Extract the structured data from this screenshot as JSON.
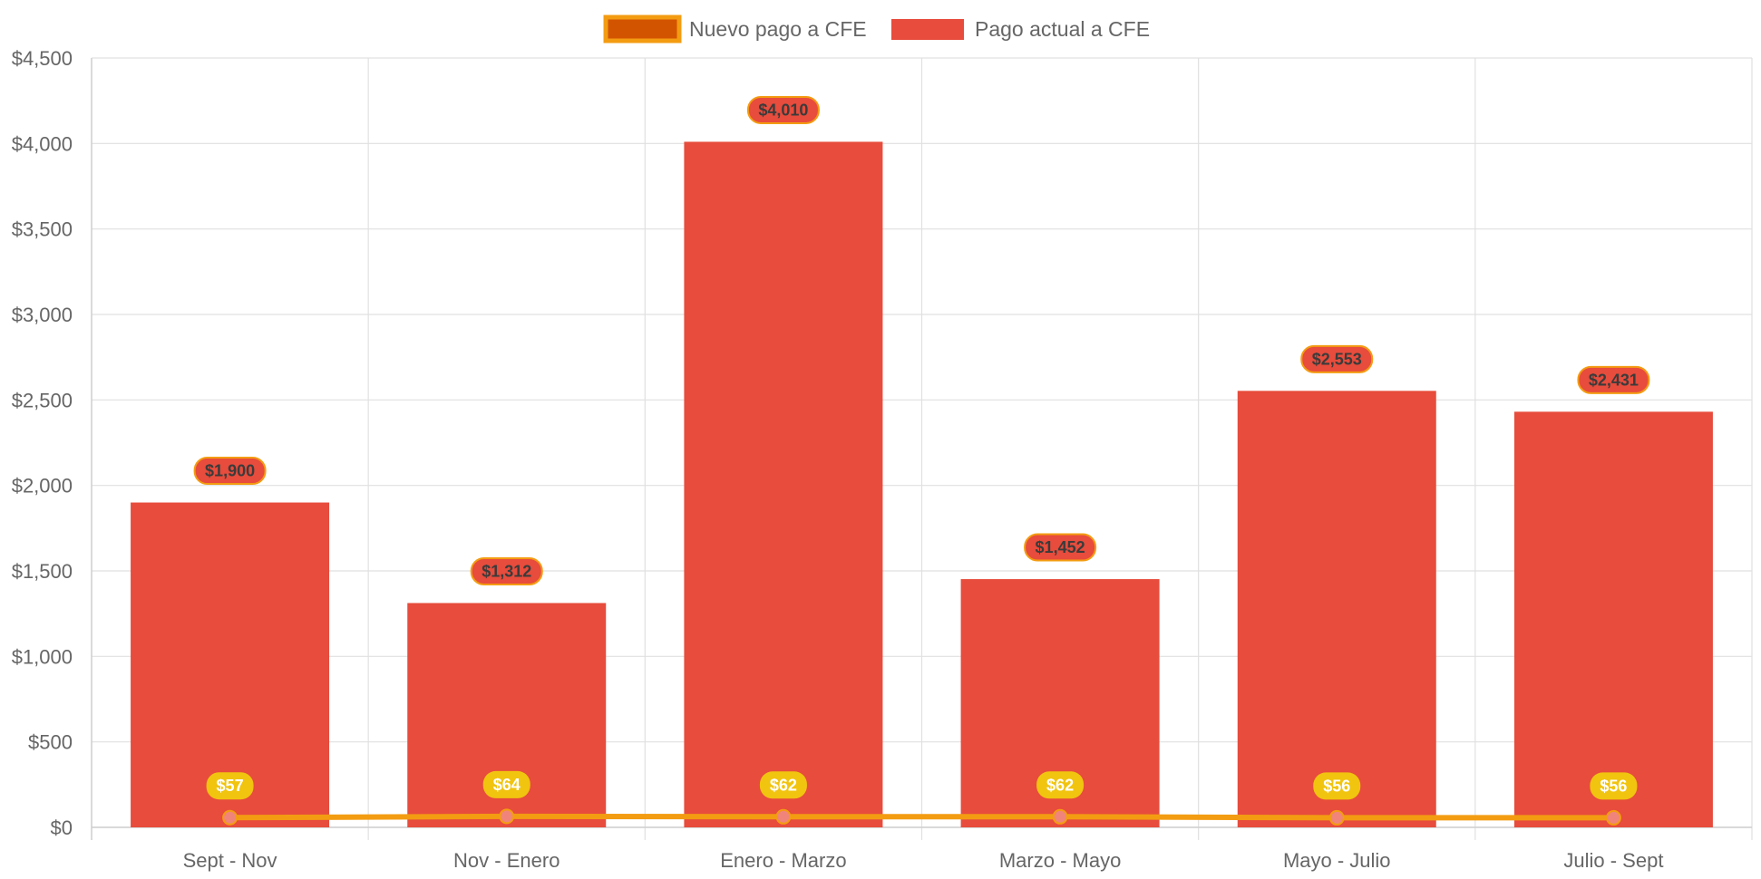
{
  "chart_data": {
    "type": "bar",
    "categories": [
      "Sept - Nov",
      "Nov - Enero",
      "Enero - Marzo",
      "Marzo - Mayo",
      "Mayo - Julio",
      "Julio - Sept"
    ],
    "series": [
      {
        "name": "Nuevo pago a CFE",
        "render": "line",
        "values": [
          57,
          64,
          62,
          62,
          56,
          56
        ],
        "labels": [
          "$57",
          "$64",
          "$62",
          "$62",
          "$56",
          "$56"
        ],
        "color": "#f39c12",
        "swatch_fill": "#d35400"
      },
      {
        "name": "Pago actual a CFE",
        "render": "bar",
        "values": [
          1900,
          1312,
          4010,
          1452,
          2553,
          2431
        ],
        "labels": [
          "$1,900",
          "$1,312",
          "$4,010",
          "$1,452",
          "$2,553",
          "$2,431"
        ],
        "color": "#e74c3c"
      }
    ],
    "ylim": [
      0,
      4500
    ],
    "yticks": [
      0,
      500,
      1000,
      1500,
      2000,
      2500,
      3000,
      3500,
      4000,
      4500
    ],
    "ytick_labels": [
      "$0",
      "$500",
      "$1,000",
      "$1,500",
      "$2,000",
      "$2,500",
      "$3,000",
      "$3,500",
      "$4,000",
      "$4,500"
    ],
    "grid": true,
    "legend": "top-center",
    "title": "",
    "xlabel": "",
    "ylabel": "",
    "colors": {
      "grid": "#e0e0e0",
      "tick_text": "#666666",
      "line_label_bg": "#f1c40f",
      "bar_label_border": "#f39c12"
    }
  }
}
